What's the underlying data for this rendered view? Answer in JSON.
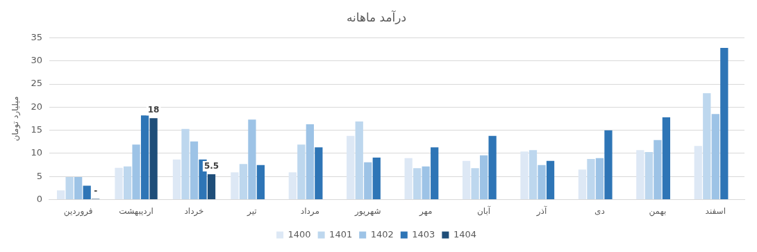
{
  "chart_data": {
    "type": "bar",
    "title": "درآمد ماهانه",
    "ylabel": "میلیارد تومان",
    "categories": [
      "فروردین",
      "اردیبهشت",
      "خرداد",
      "تیر",
      "مرداد",
      "شهریور",
      "مهر",
      "آبان",
      "آذر",
      "دی",
      "بهمن",
      "اسفند"
    ],
    "series": [
      {
        "name": "1400",
        "color": "#dde8f5",
        "values": [
          2,
          6.9,
          8.7,
          5.9,
          5.9,
          13.8,
          9.0,
          8.4,
          10.4,
          6.5,
          10.7,
          11.6
        ]
      },
      {
        "name": "1401",
        "color": "#bdd7ee",
        "values": [
          4.9,
          7.2,
          15.3,
          7.7,
          11.9,
          16.9,
          6.8,
          6.8,
          10.7,
          8.8,
          10.3,
          23.0
        ]
      },
      {
        "name": "1402",
        "color": "#9dc3e6",
        "values": [
          4.9,
          11.9,
          12.6,
          17.3,
          16.3,
          8.1,
          7.2,
          9.6,
          7.5,
          9.0,
          12.9,
          18.5
        ]
      },
      {
        "name": "1403",
        "color": "#2e75b6",
        "values": [
          3.0,
          18.2,
          8.7,
          7.5,
          11.3,
          9.1,
          11.3,
          13.8,
          8.4,
          15.0,
          17.8,
          32.8
        ]
      },
      {
        "name": "1404",
        "color": "#1f4e79",
        "values": [
          0,
          17.6,
          5.5,
          null,
          null,
          null,
          null,
          null,
          null,
          null,
          null,
          null
        ],
        "value_labels": [
          "-",
          "18",
          "5.5",
          null,
          null,
          null,
          null,
          null,
          null,
          null,
          null,
          null
        ]
      }
    ],
    "ylim": [
      0,
      35
    ],
    "yticks": [
      0,
      5,
      10,
      15,
      20,
      25,
      30,
      35
    ],
    "grid": "y",
    "legend": "bottom"
  }
}
